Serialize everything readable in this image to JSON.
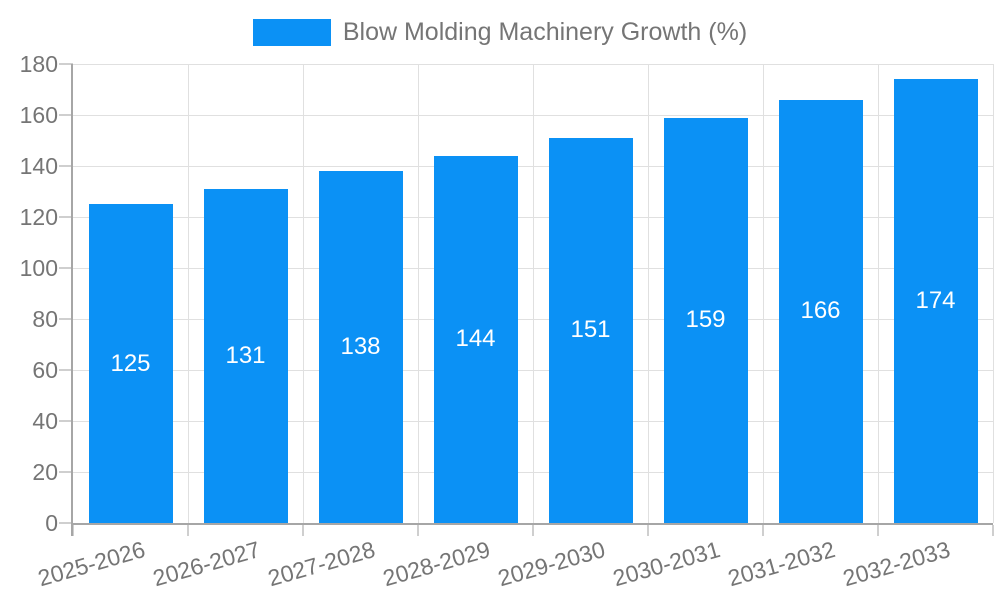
{
  "chart_data": {
    "type": "bar",
    "title": "Blow Molding Machinery Growth (%)",
    "categories": [
      "2025-2026",
      "2026-2027",
      "2027-2028",
      "2028-2029",
      "2029-2030",
      "2030-2031",
      "2031-2032",
      "2032-2033"
    ],
    "series": [
      {
        "name": "Blow Molding Machinery Growth (%)",
        "values": [
          125,
          131,
          138,
          144,
          151,
          159,
          166,
          174
        ]
      }
    ],
    "xlabel": "",
    "ylabel": "",
    "ylim": [
      0,
      180
    ],
    "yticks": [
      0,
      20,
      40,
      60,
      80,
      100,
      120,
      140,
      160,
      180
    ],
    "grid": true,
    "legend_position": "top",
    "value_labels": "inside-center",
    "x_label_rotation_deg": -16,
    "colors": {
      "bar": "#0b91f5",
      "grid": "#e0e0e0",
      "axis": "#a6a6a6",
      "tick": "#cfcfcf",
      "tick_text": "#757575",
      "legend_text": "#757575",
      "value_label_text": "#ffffff",
      "background": "#ffffff"
    }
  }
}
